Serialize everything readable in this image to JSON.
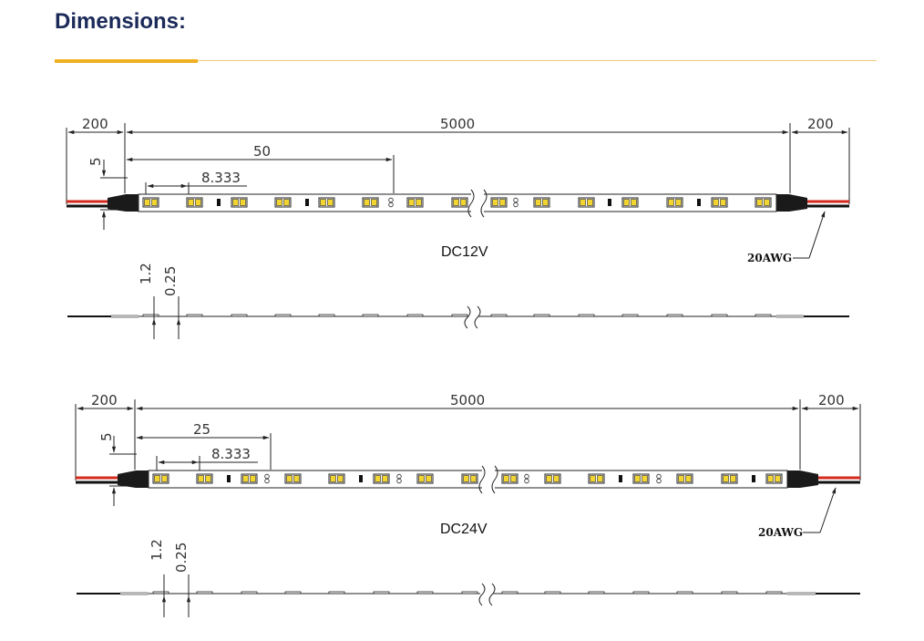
{
  "header": {
    "title": "Dimensions:"
  },
  "colors": {
    "accent": "#f0b023",
    "accent_light": "#f1c97c",
    "title": "#1b2a59",
    "wire_red": "#d42a1e",
    "led_yellow": "#f3d531"
  },
  "diagrams": [
    {
      "voltage": "DC12V",
      "dim_lead_left": "200",
      "dim_total": "5000",
      "dim_lead_right": "200",
      "dim_cut_length": "50",
      "dim_led_pitch": "8.333",
      "dim_width": "5",
      "dim_height": "1.2",
      "dim_thickness": "0.25",
      "wire_gauge": "20AWG"
    },
    {
      "voltage": "DC24V",
      "dim_lead_left": "200",
      "dim_total": "5000",
      "dim_lead_right": "200",
      "dim_cut_length": "25",
      "dim_led_pitch": "8.333",
      "dim_width": "5",
      "dim_height": "1.2",
      "dim_thickness": "0.25",
      "wire_gauge": "20AWG"
    }
  ]
}
